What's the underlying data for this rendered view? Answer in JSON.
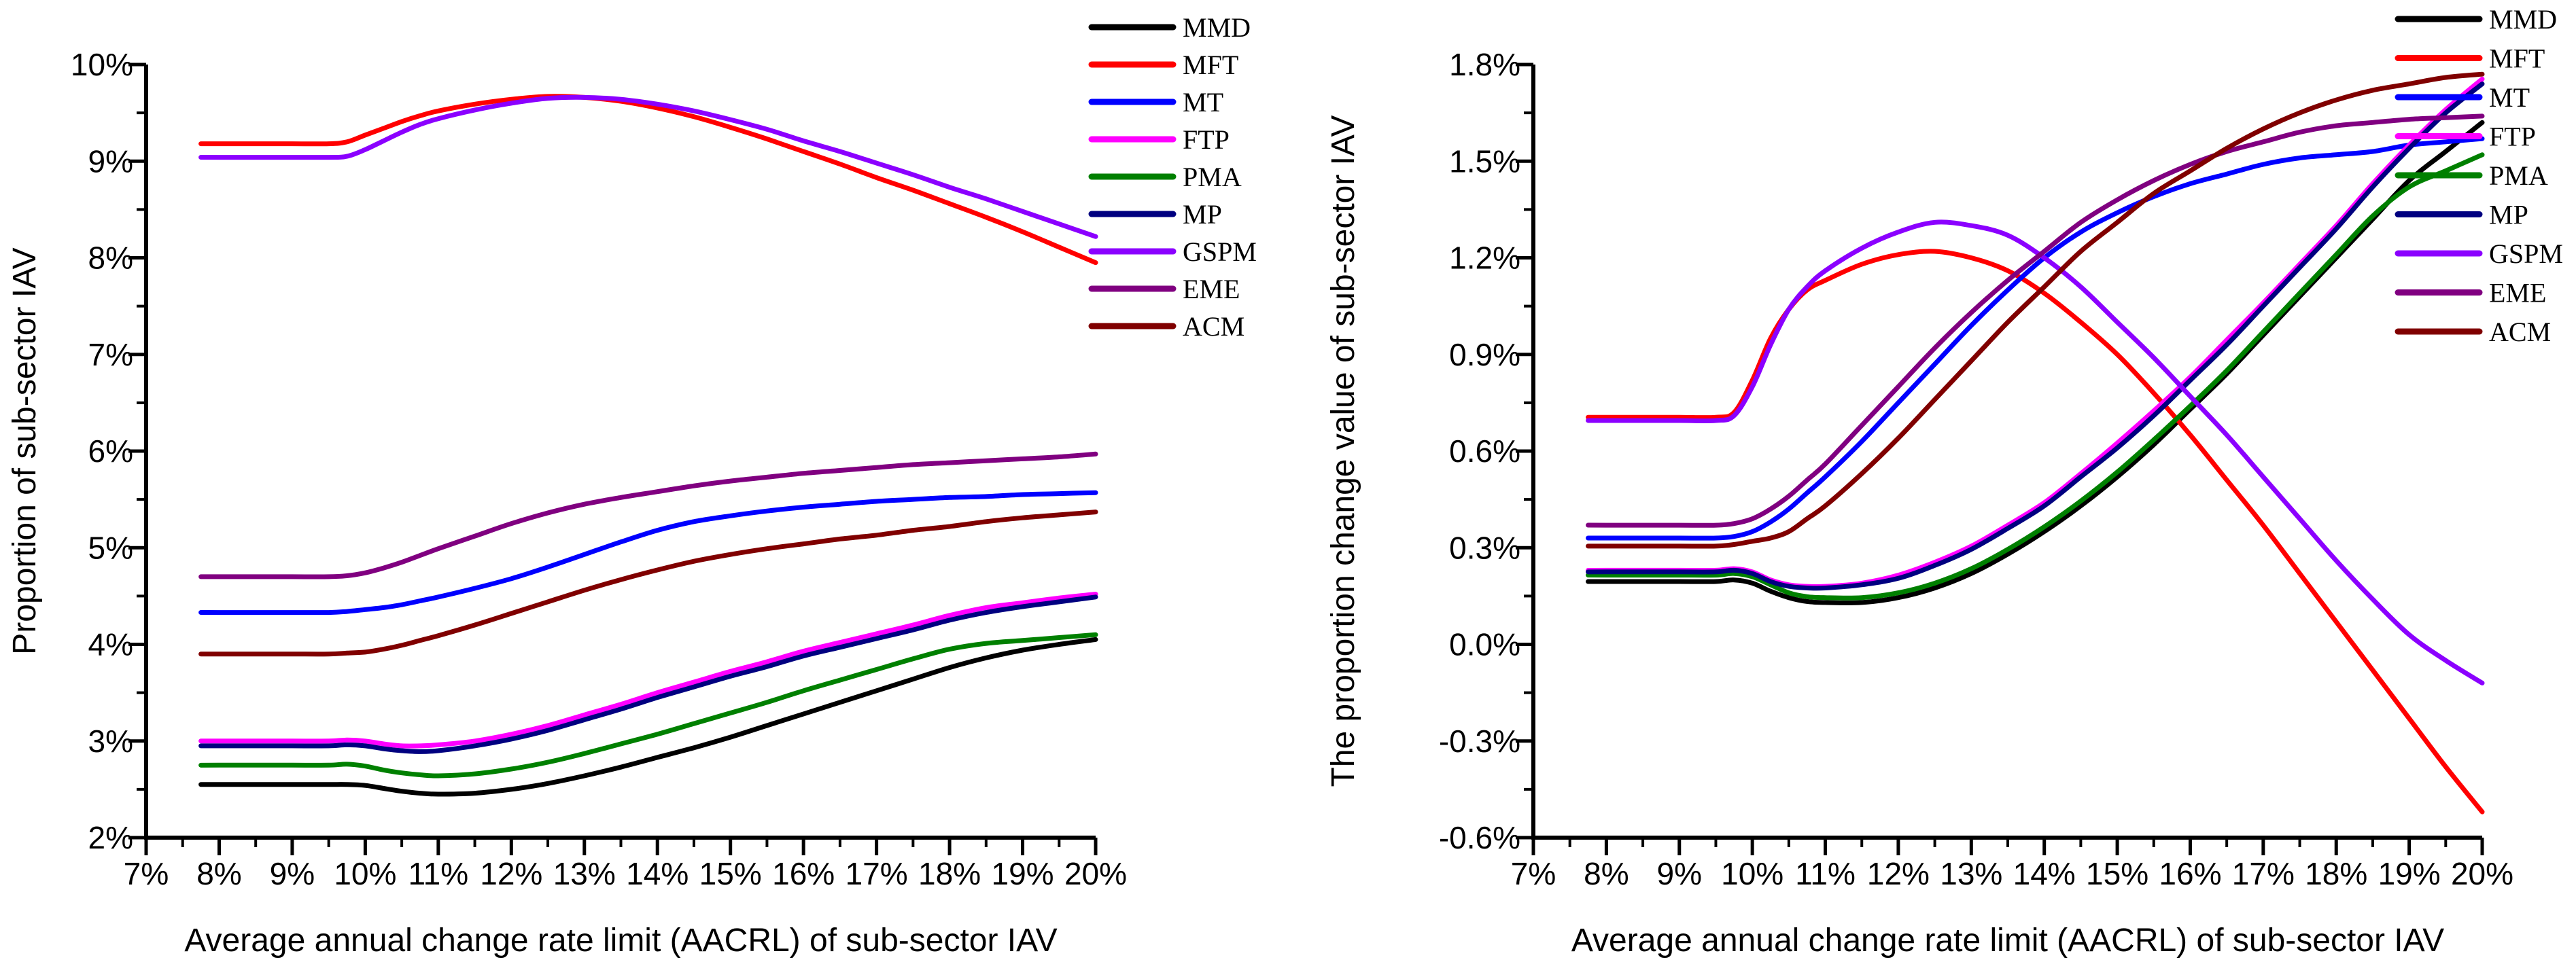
{
  "figure": {
    "background": "#FFFFFF",
    "axis_color": "#000000"
  },
  "legend_entries": [
    "MMD",
    "MFT",
    "MT",
    "FTP",
    "PMA",
    "MP",
    "GSPM",
    "EME",
    "ACM"
  ],
  "series_colors": {
    "MMD": "#000000",
    "MFT": "#FF0000",
    "MT": "#0000FF",
    "FTP": "#FF00FF",
    "PMA": "#008000",
    "MP": "#000080",
    "GSPM": "#8B00FF",
    "EME": "#800080",
    "ACM": "#800000"
  },
  "chart_data": [
    {
      "type": "line",
      "title": "",
      "xlabel": "Average annual change rate limit (AACRL) of sub-sector IAV",
      "ylabel": "Proportion of sub-sector IAV",
      "xlim": [
        7,
        20
      ],
      "ylim": [
        2,
        10
      ],
      "grid": false,
      "legend_position": "outside-top-right",
      "x_tick_values": [
        7,
        8,
        9,
        10,
        11,
        12,
        13,
        14,
        15,
        16,
        17,
        18,
        19,
        20
      ],
      "x_tick_labels": [
        "7%",
        "8%",
        "9%",
        "10%",
        "11%",
        "12%",
        "13%",
        "14%",
        "15%",
        "16%",
        "17%",
        "18%",
        "19%",
        "20%"
      ],
      "y_tick_values": [
        2,
        3,
        4,
        5,
        6,
        7,
        8,
        9,
        10
      ],
      "y_tick_labels": [
        "2%",
        "3%",
        "4%",
        "5%",
        "6%",
        "7%",
        "8%",
        "9%",
        "10%"
      ],
      "x": [
        7.75,
        8,
        8.5,
        9,
        9.5,
        9.75,
        10,
        10.25,
        10.5,
        10.75,
        11,
        11.5,
        12,
        12.5,
        13,
        13.5,
        14,
        14.5,
        15,
        15.5,
        16,
        16.5,
        17,
        17.5,
        18,
        18.5,
        19,
        19.5,
        20
      ],
      "series": [
        {
          "name": "MMD",
          "color": "#000000",
          "values": [
            2.55,
            2.55,
            2.55,
            2.55,
            2.55,
            2.55,
            2.54,
            2.51,
            2.48,
            2.46,
            2.45,
            2.46,
            2.5,
            2.56,
            2.64,
            2.73,
            2.83,
            2.93,
            3.04,
            3.16,
            3.28,
            3.4,
            3.52,
            3.64,
            3.76,
            3.86,
            3.94,
            4.0,
            4.05
          ]
        },
        {
          "name": "MFT",
          "color": "#FF0000",
          "values": [
            9.18,
            9.18,
            9.18,
            9.18,
            9.18,
            9.2,
            9.27,
            9.34,
            9.41,
            9.47,
            9.52,
            9.59,
            9.64,
            9.67,
            9.66,
            9.62,
            9.55,
            9.46,
            9.35,
            9.23,
            9.1,
            8.97,
            8.83,
            8.7,
            8.56,
            8.42,
            8.27,
            8.11,
            7.95
          ]
        },
        {
          "name": "MT",
          "color": "#0000FF",
          "values": [
            4.33,
            4.33,
            4.33,
            4.33,
            4.33,
            4.34,
            4.36,
            4.38,
            4.41,
            4.45,
            4.49,
            4.58,
            4.68,
            4.8,
            4.93,
            5.06,
            5.18,
            5.27,
            5.33,
            5.38,
            5.42,
            5.45,
            5.48,
            5.5,
            5.52,
            5.53,
            5.55,
            5.56,
            5.57
          ]
        },
        {
          "name": "FTP",
          "color": "#FF00FF",
          "values": [
            3.0,
            3.0,
            3.0,
            3.0,
            3.0,
            3.01,
            3.0,
            2.97,
            2.95,
            2.95,
            2.96,
            3.0,
            3.07,
            3.16,
            3.27,
            3.38,
            3.5,
            3.61,
            3.72,
            3.82,
            3.93,
            4.02,
            4.11,
            4.2,
            4.3,
            4.38,
            4.43,
            4.48,
            4.52
          ]
        },
        {
          "name": "PMA",
          "color": "#008000",
          "values": [
            2.75,
            2.75,
            2.75,
            2.75,
            2.75,
            2.76,
            2.74,
            2.7,
            2.67,
            2.65,
            2.64,
            2.66,
            2.71,
            2.78,
            2.87,
            2.97,
            3.07,
            3.18,
            3.29,
            3.4,
            3.52,
            3.63,
            3.74,
            3.85,
            3.95,
            4.01,
            4.04,
            4.07,
            4.1
          ]
        },
        {
          "name": "MP",
          "color": "#000080",
          "values": [
            2.95,
            2.95,
            2.95,
            2.95,
            2.95,
            2.96,
            2.95,
            2.92,
            2.9,
            2.89,
            2.9,
            2.95,
            3.02,
            3.11,
            3.22,
            3.33,
            3.45,
            3.56,
            3.67,
            3.77,
            3.88,
            3.97,
            4.06,
            4.15,
            4.25,
            4.33,
            4.39,
            4.44,
            4.49
          ]
        },
        {
          "name": "GSPM",
          "color": "#8B00FF",
          "values": [
            9.04,
            9.04,
            9.04,
            9.04,
            9.04,
            9.05,
            9.12,
            9.21,
            9.3,
            9.38,
            9.44,
            9.53,
            9.6,
            9.65,
            9.66,
            9.64,
            9.59,
            9.52,
            9.43,
            9.33,
            9.21,
            9.1,
            8.98,
            8.86,
            8.73,
            8.61,
            8.48,
            8.35,
            8.22
          ]
        },
        {
          "name": "EME",
          "color": "#800080",
          "values": [
            4.7,
            4.7,
            4.7,
            4.7,
            4.7,
            4.71,
            4.74,
            4.79,
            4.85,
            4.92,
            4.99,
            5.12,
            5.25,
            5.36,
            5.45,
            5.52,
            5.58,
            5.64,
            5.69,
            5.73,
            5.77,
            5.8,
            5.83,
            5.86,
            5.88,
            5.9,
            5.92,
            5.94,
            5.97
          ]
        },
        {
          "name": "ACM",
          "color": "#800000",
          "values": [
            3.9,
            3.9,
            3.9,
            3.9,
            3.9,
            3.91,
            3.92,
            3.95,
            3.99,
            4.04,
            4.09,
            4.2,
            4.32,
            4.44,
            4.56,
            4.67,
            4.77,
            4.86,
            4.93,
            4.99,
            5.04,
            5.09,
            5.13,
            5.18,
            5.22,
            5.27,
            5.31,
            5.34,
            5.37
          ]
        }
      ]
    },
    {
      "type": "line",
      "title": "",
      "xlabel": "Average annual change rate limit (AACRL) of sub-sector IAV",
      "ylabel": "The proportion change value of sub-sector IAV",
      "xlim": [
        7,
        20
      ],
      "ylim": [
        -0.6,
        1.8
      ],
      "grid": false,
      "legend_position": "outside-top-right",
      "x_tick_values": [
        7,
        8,
        9,
        10,
        11,
        12,
        13,
        14,
        15,
        16,
        17,
        18,
        19,
        20
      ],
      "x_tick_labels": [
        "7%",
        "8%",
        "9%",
        "10%",
        "11%",
        "12%",
        "13%",
        "14%",
        "15%",
        "16%",
        "17%",
        "18%",
        "19%",
        "20%"
      ],
      "y_tick_values": [
        -0.6,
        -0.3,
        0.0,
        0.3,
        0.6,
        0.9,
        1.2,
        1.5,
        1.8
      ],
      "y_tick_labels": [
        "-0.6%",
        "-0.3%",
        "0.0%",
        "0.3%",
        "0.6%",
        "0.9%",
        "1.2%",
        "1.5%",
        "1.8%"
      ],
      "x": [
        7.75,
        8,
        8.5,
        9,
        9.5,
        9.75,
        10,
        10.25,
        10.5,
        10.75,
        11,
        11.5,
        12,
        12.5,
        13,
        13.5,
        14,
        14.5,
        15,
        15.5,
        16,
        16.5,
        17,
        17.5,
        18,
        18.5,
        19,
        19.5,
        20
      ],
      "series": [
        {
          "name": "MMD",
          "color": "#000000",
          "values": [
            0.195,
            0.195,
            0.195,
            0.195,
            0.195,
            0.2,
            0.19,
            0.165,
            0.145,
            0.133,
            0.13,
            0.13,
            0.145,
            0.175,
            0.22,
            0.28,
            0.35,
            0.43,
            0.52,
            0.62,
            0.73,
            0.84,
            0.96,
            1.08,
            1.2,
            1.32,
            1.44,
            1.53,
            1.62
          ]
        },
        {
          "name": "MFT",
          "color": "#FF0000",
          "values": [
            0.705,
            0.705,
            0.705,
            0.705,
            0.705,
            0.72,
            0.82,
            0.95,
            1.04,
            1.1,
            1.13,
            1.18,
            1.21,
            1.22,
            1.2,
            1.16,
            1.09,
            1.0,
            0.9,
            0.78,
            0.65,
            0.51,
            0.37,
            0.22,
            0.07,
            -0.08,
            -0.23,
            -0.38,
            -0.52
          ]
        },
        {
          "name": "MT",
          "color": "#0000FF",
          "values": [
            0.33,
            0.33,
            0.33,
            0.33,
            0.33,
            0.335,
            0.35,
            0.38,
            0.42,
            0.47,
            0.52,
            0.63,
            0.75,
            0.87,
            0.99,
            1.1,
            1.2,
            1.28,
            1.34,
            1.39,
            1.43,
            1.46,
            1.49,
            1.51,
            1.52,
            1.53,
            1.55,
            1.56,
            1.57
          ]
        },
        {
          "name": "FTP",
          "color": "#FF00FF",
          "values": [
            0.23,
            0.23,
            0.23,
            0.23,
            0.23,
            0.235,
            0.225,
            0.2,
            0.185,
            0.18,
            0.18,
            0.19,
            0.215,
            0.255,
            0.305,
            0.37,
            0.44,
            0.53,
            0.625,
            0.725,
            0.83,
            0.945,
            1.06,
            1.18,
            1.3,
            1.43,
            1.55,
            1.66,
            1.755
          ]
        },
        {
          "name": "PMA",
          "color": "#008000",
          "values": [
            0.215,
            0.215,
            0.215,
            0.215,
            0.215,
            0.22,
            0.21,
            0.185,
            0.16,
            0.148,
            0.145,
            0.145,
            0.16,
            0.19,
            0.235,
            0.295,
            0.365,
            0.445,
            0.535,
            0.635,
            0.74,
            0.85,
            0.97,
            1.09,
            1.21,
            1.33,
            1.42,
            1.47,
            1.52
          ]
        },
        {
          "name": "MP",
          "color": "#000080",
          "values": [
            0.225,
            0.225,
            0.225,
            0.225,
            0.225,
            0.23,
            0.22,
            0.195,
            0.18,
            0.175,
            0.175,
            0.185,
            0.205,
            0.245,
            0.295,
            0.36,
            0.43,
            0.52,
            0.61,
            0.71,
            0.82,
            0.93,
            1.05,
            1.17,
            1.29,
            1.42,
            1.54,
            1.65,
            1.74
          ]
        },
        {
          "name": "GSPM",
          "color": "#8B00FF",
          "values": [
            0.695,
            0.695,
            0.695,
            0.695,
            0.695,
            0.71,
            0.8,
            0.93,
            1.04,
            1.11,
            1.16,
            1.23,
            1.28,
            1.31,
            1.3,
            1.27,
            1.2,
            1.11,
            1.0,
            0.89,
            0.77,
            0.65,
            0.52,
            0.39,
            0.26,
            0.14,
            0.03,
            -0.05,
            -0.12
          ]
        },
        {
          "name": "EME",
          "color": "#800080",
          "values": [
            0.37,
            0.37,
            0.37,
            0.37,
            0.37,
            0.375,
            0.39,
            0.42,
            0.46,
            0.51,
            0.56,
            0.68,
            0.8,
            0.92,
            1.03,
            1.13,
            1.22,
            1.31,
            1.38,
            1.44,
            1.49,
            1.53,
            1.56,
            1.59,
            1.61,
            1.62,
            1.63,
            1.635,
            1.64
          ]
        },
        {
          "name": "ACM",
          "color": "#800000",
          "values": [
            0.305,
            0.305,
            0.305,
            0.305,
            0.305,
            0.31,
            0.32,
            0.33,
            0.35,
            0.39,
            0.43,
            0.53,
            0.64,
            0.76,
            0.88,
            1.0,
            1.11,
            1.22,
            1.31,
            1.4,
            1.47,
            1.54,
            1.6,
            1.65,
            1.69,
            1.72,
            1.74,
            1.76,
            1.77
          ]
        }
      ]
    }
  ]
}
